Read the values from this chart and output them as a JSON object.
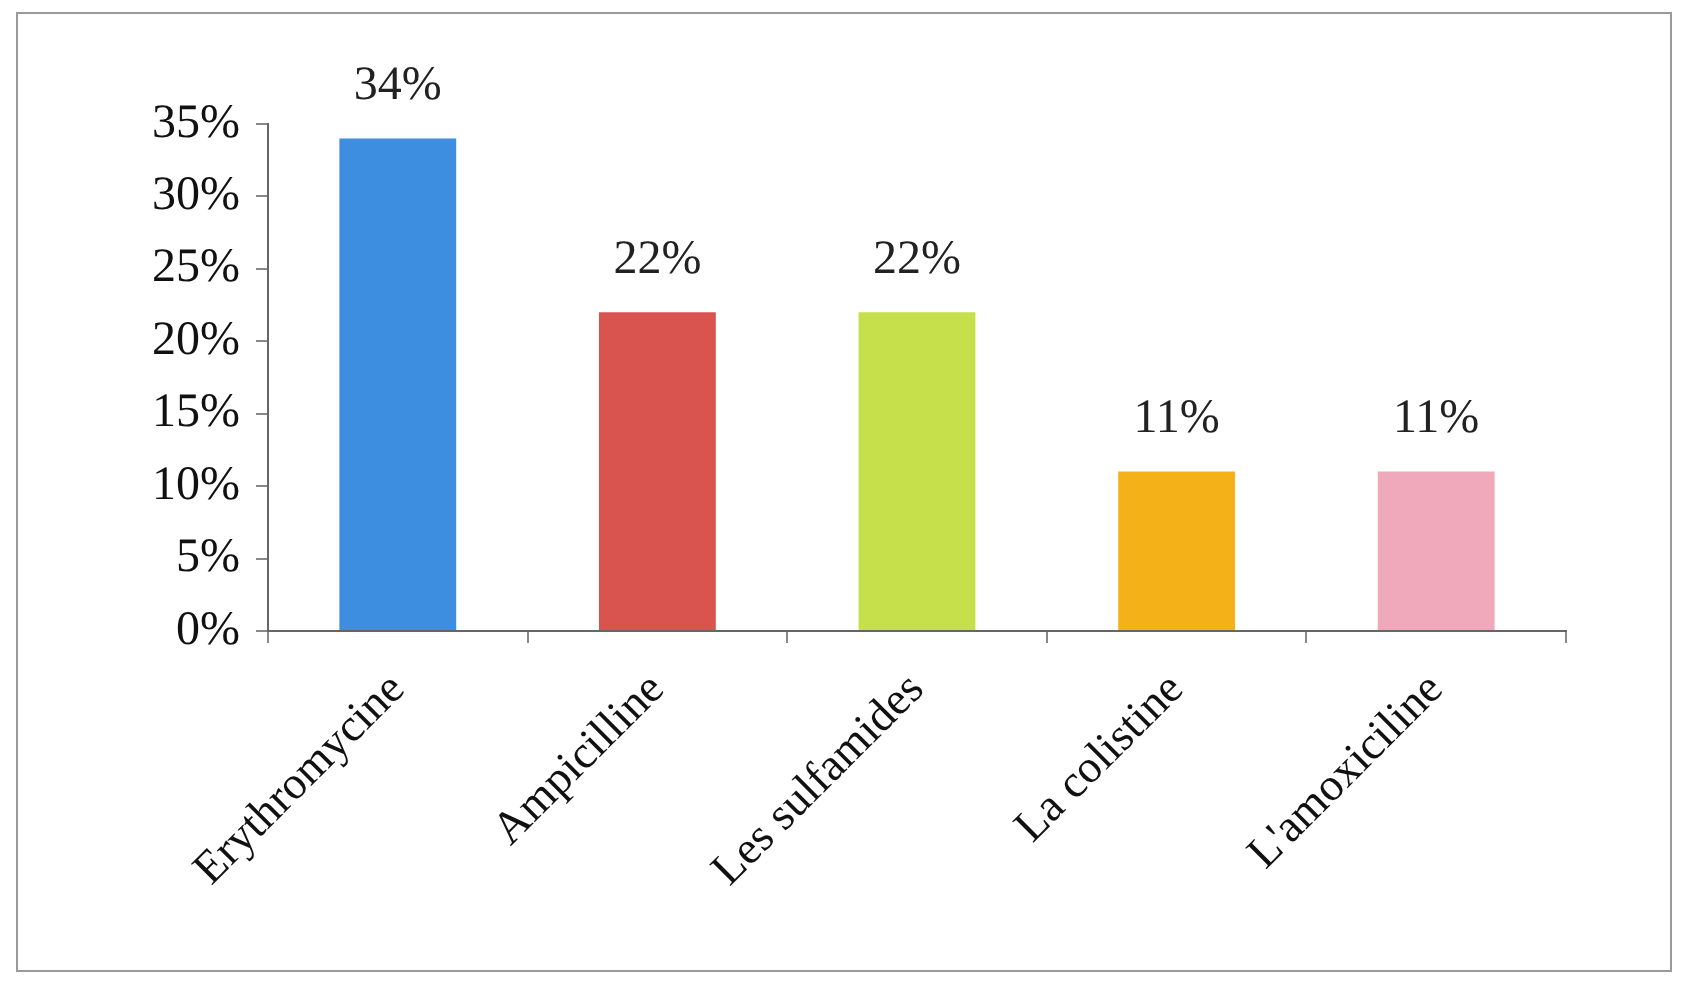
{
  "chart_data": {
    "type": "bar",
    "categories": [
      "Erythromycine",
      "Ampicilline",
      "Les sulfamides",
      "La colistine",
      "L'amoxiciline"
    ],
    "values": [
      34,
      22,
      22,
      11,
      11
    ],
    "colors": [
      "#3d8de0",
      "#d9534f",
      "#c5e04a",
      "#f5b218",
      "#f0a9bb"
    ],
    "value_labels": [
      "34%",
      "22%",
      "22%",
      "11%",
      "11%"
    ],
    "ylim": [
      0,
      35
    ],
    "yticks": [
      {
        "value": 0,
        "label": "0%"
      },
      {
        "value": 5,
        "label": "5%"
      },
      {
        "value": 10,
        "label": "10%"
      },
      {
        "value": 15,
        "label": "15%"
      },
      {
        "value": 20,
        "label": "20%"
      },
      {
        "value": 25,
        "label": "25%"
      },
      {
        "value": 30,
        "label": "30%"
      },
      {
        "value": 35,
        "label": "35%"
      }
    ],
    "grid": false,
    "legend": false
  }
}
